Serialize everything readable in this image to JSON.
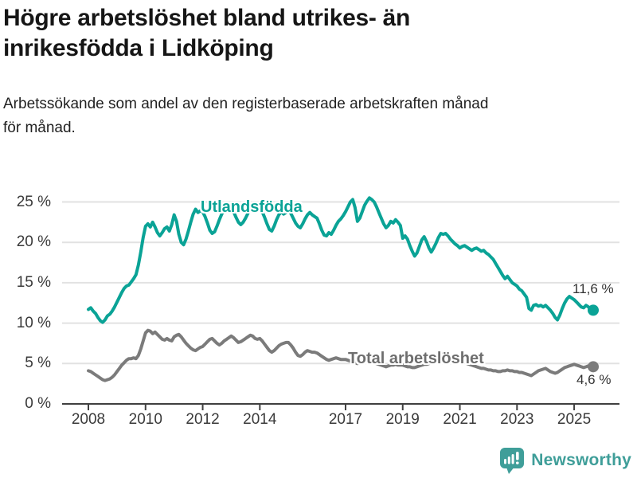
{
  "header": {
    "title_lines": [
      "Högre arbetslöshet bland utrikes- än",
      "inrikesfödda i Lidköping"
    ],
    "subtitle_lines": [
      "Arbetssökande som andel av den registerbaserade arbetskraften månad",
      "för månad."
    ]
  },
  "footer": {
    "brand": "Newsworthy"
  },
  "colors": {
    "series_foreign_born": "#0aa396",
    "series_total": "#7b7b7b",
    "axis": "#404040",
    "gridline": "#e2e2e2",
    "brand_teal": "#3f9e99"
  },
  "chart_data": {
    "type": "line",
    "title": "Högre arbetslöshet bland utrikes- än inrikesfödda i Lidköping",
    "subtitle": "Arbetssökande som andel av den registerbaserade arbetskraften månad för månad.",
    "x_unit": "month",
    "x_start": "2008-01",
    "x_end": "2025-09",
    "x_tick_years": [
      2008,
      2010,
      2012,
      2014,
      2017,
      2019,
      2021,
      2023,
      2025
    ],
    "y_tick_values": [
      0,
      5,
      10,
      15,
      20,
      25
    ],
    "y_ticks": [
      "0 %",
      "5 %",
      "10 %",
      "15 %",
      "20 %",
      "25 %"
    ],
    "ylim": [
      0,
      26.5
    ],
    "grid": "horizontal",
    "series": [
      {
        "name": "Total arbetslöshet",
        "color": "#7b7b7b",
        "end_label": "4,6 %",
        "end_value": 4.6,
        "values": [
          4.1,
          4.0,
          3.8,
          3.6,
          3.4,
          3.2,
          3.0,
          2.9,
          3.0,
          3.1,
          3.3,
          3.6,
          4.0,
          4.4,
          4.8,
          5.1,
          5.4,
          5.6,
          5.6,
          5.7,
          5.6,
          6.0,
          6.8,
          7.8,
          8.8,
          9.1,
          9.0,
          8.7,
          8.9,
          8.6,
          8.3,
          8.0,
          7.9,
          8.1,
          7.9,
          7.8,
          8.3,
          8.5,
          8.6,
          8.3,
          7.9,
          7.5,
          7.2,
          6.9,
          6.7,
          6.6,
          6.8,
          7.0,
          7.1,
          7.4,
          7.7,
          8.0,
          8.1,
          7.8,
          7.5,
          7.3,
          7.5,
          7.8,
          8.0,
          8.2,
          8.4,
          8.2,
          7.9,
          7.6,
          7.7,
          7.9,
          8.1,
          8.3,
          8.5,
          8.4,
          8.1,
          8.0,
          8.1,
          7.8,
          7.4,
          7.0,
          6.6,
          6.4,
          6.6,
          6.9,
          7.2,
          7.4,
          7.5,
          7.6,
          7.6,
          7.3,
          6.9,
          6.4,
          6.0,
          5.9,
          6.1,
          6.4,
          6.6,
          6.5,
          6.4,
          6.4,
          6.3,
          6.1,
          5.9,
          5.7,
          5.5,
          5.4,
          5.5,
          5.6,
          5.7,
          5.6,
          5.5,
          5.5,
          5.5,
          5.4,
          5.3,
          5.2,
          5.1,
          5.0,
          5.1,
          5.2,
          5.3,
          5.3,
          5.2,
          5.2,
          5.1,
          5.0,
          4.9,
          4.8,
          4.7,
          4.6,
          4.7,
          4.8,
          4.8,
          4.9,
          4.8,
          4.8,
          4.8,
          4.7,
          4.6,
          4.6,
          4.5,
          4.5,
          4.6,
          4.7,
          4.8,
          4.9,
          4.9,
          5.0,
          5.2,
          5.4,
          5.6,
          5.9,
          6.1,
          6.2,
          6.1,
          6.0,
          5.9,
          5.7,
          5.6,
          5.5,
          5.4,
          5.3,
          5.2,
          5.0,
          4.9,
          4.8,
          4.7,
          4.6,
          4.5,
          4.4,
          4.4,
          4.3,
          4.2,
          4.2,
          4.1,
          4.1,
          4.0,
          4.0,
          4.1,
          4.1,
          4.2,
          4.1,
          4.1,
          4.0,
          4.0,
          3.9,
          3.9,
          3.8,
          3.7,
          3.6,
          3.5,
          3.7,
          3.9,
          4.1,
          4.2,
          4.3,
          4.4,
          4.2,
          4.0,
          3.9,
          3.8,
          3.9,
          4.1,
          4.3,
          4.5,
          4.6,
          4.7,
          4.8,
          4.9,
          4.8,
          4.7,
          4.6,
          4.5,
          4.6,
          4.7,
          4.6,
          4.6
        ]
      },
      {
        "name": "Utlandsfödda",
        "color": "#0aa396",
        "end_label": "11,6 %",
        "end_value": 11.6,
        "values": [
          11.7,
          11.9,
          11.5,
          11.2,
          10.7,
          10.3,
          10.1,
          10.4,
          10.9,
          11.1,
          11.5,
          12.0,
          12.6,
          13.2,
          13.8,
          14.3,
          14.6,
          14.7,
          15.1,
          15.5,
          16.0,
          17.2,
          18.8,
          20.6,
          22.0,
          22.3,
          21.9,
          22.5,
          21.9,
          21.2,
          20.8,
          21.2,
          21.7,
          21.9,
          21.4,
          22.2,
          23.4,
          22.6,
          21.0,
          20.0,
          19.7,
          20.4,
          21.4,
          22.5,
          23.5,
          24.1,
          23.7,
          23.9,
          23.8,
          23.2,
          22.4,
          21.5,
          21.1,
          21.3,
          22.0,
          22.8,
          23.5,
          24.0,
          23.8,
          24.1,
          24.2,
          23.8,
          23.1,
          22.5,
          22.2,
          22.5,
          23.0,
          23.6,
          24.0,
          24.2,
          23.9,
          24.1,
          24.3,
          23.8,
          23.1,
          22.3,
          21.6,
          21.4,
          22.0,
          22.8,
          23.4,
          23.8,
          23.5,
          23.7,
          24.0,
          23.6,
          23.0,
          22.4,
          22.0,
          21.8,
          22.3,
          22.9,
          23.4,
          23.7,
          23.4,
          23.2,
          23.0,
          22.3,
          21.5,
          20.9,
          20.8,
          21.2,
          21.0,
          21.5,
          22.1,
          22.6,
          22.9,
          23.3,
          23.8,
          24.4,
          25.0,
          25.3,
          24.3,
          22.6,
          23.0,
          23.8,
          24.6,
          25.1,
          25.5,
          25.3,
          25.0,
          24.4,
          23.7,
          23.0,
          22.3,
          21.8,
          22.1,
          22.6,
          22.4,
          22.8,
          22.5,
          22.1,
          20.5,
          20.8,
          20.4,
          19.6,
          18.9,
          18.3,
          18.7,
          19.5,
          20.3,
          20.7,
          20.1,
          19.3,
          18.8,
          19.3,
          19.9,
          20.6,
          21.1,
          21.0,
          21.1,
          20.8,
          20.4,
          20.1,
          19.8,
          19.6,
          19.3,
          19.5,
          19.6,
          19.4,
          19.2,
          19.0,
          19.2,
          19.3,
          19.1,
          18.9,
          19.0,
          18.7,
          18.5,
          18.2,
          17.9,
          17.4,
          16.9,
          16.4,
          15.9,
          15.5,
          15.8,
          15.4,
          15.0,
          14.8,
          14.6,
          14.2,
          14.0,
          13.6,
          13.2,
          11.8,
          11.6,
          12.2,
          12.3,
          12.1,
          12.2,
          12.0,
          12.2,
          11.9,
          11.6,
          11.2,
          10.7,
          10.4,
          11.0,
          11.8,
          12.5,
          13.0,
          13.3,
          13.1,
          12.9,
          12.6,
          12.3,
          12.0,
          11.9,
          12.2,
          12.0,
          11.7,
          11.6
        ]
      }
    ],
    "legend_position": "inline-labels"
  }
}
